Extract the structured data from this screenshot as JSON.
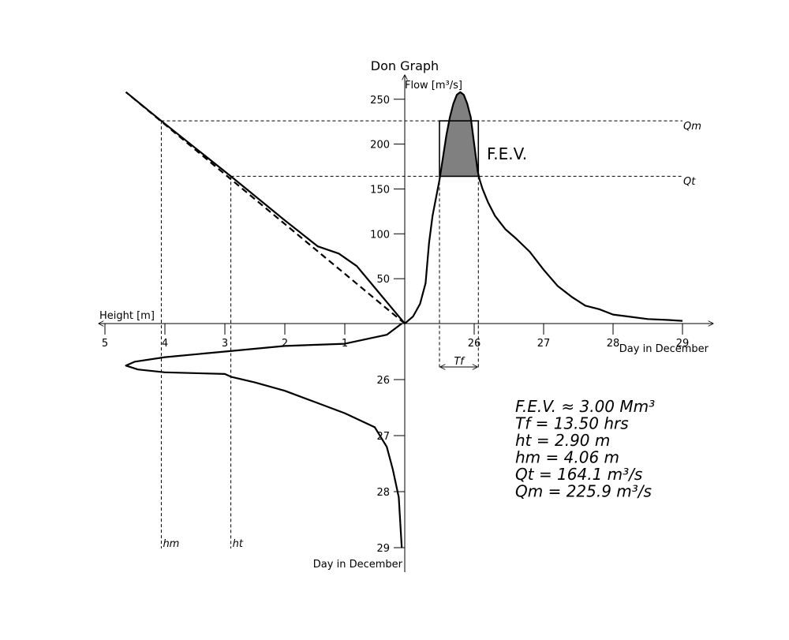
{
  "chart_data": {
    "type": "line",
    "title": "Don Graph",
    "flow_axis": {
      "label": "Flow [m³/s]",
      "ticks": [
        50,
        100,
        150,
        200,
        250
      ]
    },
    "height_axis": {
      "label": "Height [m]",
      "ticks": [
        5,
        4,
        3,
        2,
        1
      ]
    },
    "day_axis_right": {
      "label": "Day in December",
      "ticks": [
        26,
        27,
        28,
        29
      ]
    },
    "day_axis_down": {
      "label": "Day in December",
      "ticks": [
        26,
        27,
        28,
        29
      ]
    },
    "annotations": {
      "qm_label": "Qm",
      "qt_label": "Qt",
      "hm_label": "hm",
      "ht_label": "ht",
      "tf_label": "Tf",
      "fev_label": "F.E.V."
    },
    "stats": [
      "F.E.V. ≈ 3.00 Mm³",
      "Tf = 13.50 hrs",
      "ht = 2.90 m",
      "hm = 4.06 m",
      "Qt = 164.1 m³/s",
      "Qm = 225.9 m³/s"
    ],
    "series": [
      {
        "name": "hydrograph",
        "x_unit": "day",
        "y_unit": "flow m3/s",
        "x": [
          25.0,
          25.12,
          25.22,
          25.3,
          25.35,
          25.4,
          25.45,
          25.5,
          25.55,
          25.6,
          25.65,
          25.7,
          25.75,
          25.8,
          25.85,
          25.9,
          25.95,
          26.0,
          26.05,
          26.08,
          26.12,
          26.2,
          26.3,
          26.45,
          26.6,
          26.8,
          27.0,
          27.2,
          27.4,
          27.6,
          27.8,
          28.0,
          28.2,
          28.5,
          28.8,
          29.0
        ],
        "y": [
          0,
          8,
          22,
          45,
          90,
          120,
          140,
          160,
          185,
          210,
          230,
          245,
          255,
          258,
          255,
          245,
          230,
          200,
          170,
          160,
          150,
          135,
          120,
          105,
          95,
          80,
          60,
          42,
          30,
          20,
          16,
          10,
          8,
          5,
          4,
          3
        ]
      },
      {
        "name": "flow-height rating",
        "x_unit": "height m",
        "y_unit": "flow m3/s",
        "x": [
          0,
          0.2,
          0.5,
          0.8,
          1.1,
          1.45,
          2.0,
          2.9,
          4.06,
          4.65
        ],
        "y": [
          0,
          16,
          40,
          64,
          78,
          86,
          115,
          164.1,
          225.9,
          258
        ]
      },
      {
        "name": "rating tangent",
        "x_unit": "height m",
        "y_unit": "flow m3/s",
        "x": [
          0,
          4.65
        ],
        "y": [
          0,
          258
        ]
      },
      {
        "name": "stage hydrograph",
        "x_unit": "height m",
        "y_unit": "day",
        "x": [
          0.05,
          0.3,
          1.0,
          2.0,
          3.0,
          4.0,
          4.5,
          4.65,
          4.45,
          4.0,
          3.0,
          2.9,
          2.5,
          2.0,
          1.5,
          1.0,
          0.5,
          0.3,
          0.2,
          0.1,
          0.05
        ],
        "y": [
          25.0,
          25.2,
          25.36,
          25.4,
          25.5,
          25.6,
          25.68,
          25.75,
          25.82,
          25.87,
          25.9,
          25.95,
          26.05,
          26.2,
          26.4,
          26.6,
          26.85,
          27.2,
          27.6,
          28.1,
          29.0
        ]
      }
    ],
    "ranges": {
      "flow": [
        0,
        258
      ],
      "height": [
        0,
        5
      ],
      "day": [
        25,
        29
      ]
    },
    "reference_levels": {
      "Qm": 225.9,
      "Qt": 164.1,
      "hm": 4.06,
      "ht": 2.9,
      "tf_start_day": 25.5,
      "tf_end_day": 26.06
    },
    "grid": false,
    "legend": "none"
  }
}
